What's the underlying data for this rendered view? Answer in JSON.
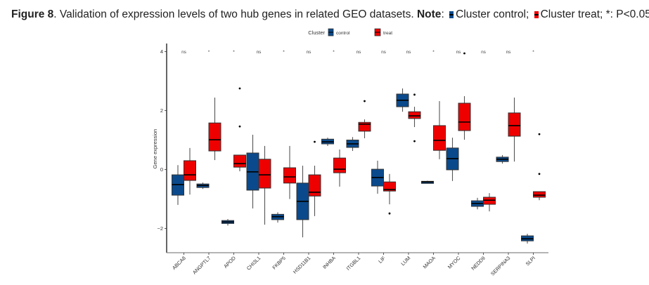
{
  "caption": {
    "figure_label": "Figure 8",
    "text": ". Validation of expression levels of two hub genes in related GEO datasets. ",
    "note_label": "Note",
    "note_control": "Cluster control; ",
    "note_treat": "Cluster treat; ",
    "note_sig": "*: P<0.05."
  },
  "colors": {
    "control": "#0a4a8c",
    "treat": "#ee0000",
    "axis": "#000000"
  },
  "chart_data": {
    "type": "boxplot",
    "title": "",
    "xlabel": "",
    "ylabel": "Gene expression",
    "ylim": [
      -2.85,
      4.3
    ],
    "yticks": [
      -2,
      0,
      2,
      4
    ],
    "legend": {
      "title": "Cluster",
      "entries": [
        "control",
        "treat"
      ],
      "position": "top"
    },
    "categories": [
      "ABCA8",
      "ANGPTL7",
      "APOD",
      "CHI3L1",
      "FKBP5",
      "HSD11B1",
      "INHBA",
      "ITGBL1",
      "LIF",
      "LUM",
      "MAOA",
      "MYOC",
      "NEDD9",
      "SERPINA3",
      "SLPI"
    ],
    "significance": [
      "ns",
      "*",
      "*",
      "ns",
      "*",
      "ns",
      "*",
      "ns",
      "ns",
      "ns",
      "*",
      "ns",
      "ns",
      "ns",
      "*"
    ],
    "series": [
      {
        "name": "control",
        "boxes": [
          {
            "min": -1.2,
            "q1": -0.87,
            "median": -0.51,
            "q3": -0.18,
            "max": 0.15,
            "outliers": []
          },
          {
            "min": -0.66,
            "q1": -0.61,
            "median": -0.54,
            "q3": -0.49,
            "max": -0.44,
            "outliers": []
          },
          {
            "min": -1.9,
            "q1": -1.83,
            "median": -1.78,
            "q3": -1.73,
            "max": -1.68,
            "outliers": []
          },
          {
            "min": -1.32,
            "q1": -0.7,
            "median": -0.08,
            "q3": 0.56,
            "max": 1.18,
            "outliers": []
          },
          {
            "min": -1.8,
            "q1": -1.7,
            "median": -1.6,
            "q3": -1.52,
            "max": -1.45,
            "outliers": []
          },
          {
            "min": -2.3,
            "q1": -1.7,
            "median": -1.08,
            "q3": -0.46,
            "max": 0.13,
            "outliers": []
          },
          {
            "min": 0.8,
            "q1": 0.87,
            "median": 0.94,
            "q3": 1.03,
            "max": 1.08,
            "outliers": []
          },
          {
            "min": 0.63,
            "q1": 0.75,
            "median": 0.87,
            "q3": 1.0,
            "max": 1.1,
            "outliers": []
          },
          {
            "min": -0.82,
            "q1": -0.56,
            "median": -0.27,
            "q3": 0.01,
            "max": 0.3,
            "outliers": []
          },
          {
            "min": 1.96,
            "q1": 2.13,
            "median": 2.35,
            "q3": 2.56,
            "max": 2.75,
            "outliers": []
          },
          {
            "min": -0.47,
            "q1": -0.44,
            "median": -0.42,
            "q3": -0.4,
            "max": -0.38,
            "outliers": []
          },
          {
            "min": -0.39,
            "q1": -0.01,
            "median": 0.37,
            "q3": 0.73,
            "max": 1.08,
            "outliers": []
          },
          {
            "min": -1.35,
            "q1": -1.25,
            "median": -1.15,
            "q3": -1.06,
            "max": -0.96,
            "outliers": []
          },
          {
            "min": 0.2,
            "q1": 0.27,
            "median": 0.35,
            "q3": 0.42,
            "max": 0.49,
            "outliers": []
          },
          {
            "min": -2.51,
            "q1": -2.42,
            "median": -2.35,
            "q3": -2.25,
            "max": -2.18,
            "outliers": []
          }
        ]
      },
      {
        "name": "treat",
        "boxes": [
          {
            "min": -0.85,
            "q1": -0.37,
            "median": -0.18,
            "q3": 0.3,
            "max": 0.73,
            "outliers": []
          },
          {
            "min": 0.32,
            "q1": 0.63,
            "median": 1.01,
            "q3": 1.58,
            "max": 2.44,
            "outliers": []
          },
          {
            "min": -0.06,
            "q1": 0.08,
            "median": 0.2,
            "q3": 0.49,
            "max": 0.5,
            "outliers": [
              2.75,
              1.46
            ]
          },
          {
            "min": -1.87,
            "q1": -0.63,
            "median": -0.18,
            "q3": 0.35,
            "max": 0.8,
            "outliers": []
          },
          {
            "min": -1.0,
            "q1": -0.46,
            "median": -0.25,
            "q3": 0.06,
            "max": 0.8,
            "outliers": []
          },
          {
            "min": -1.58,
            "q1": -0.9,
            "median": -0.77,
            "q3": -0.18,
            "max": 0.13,
            "outliers": [
              0.94
            ]
          },
          {
            "min": -0.58,
            "q1": -0.11,
            "median": 0.01,
            "q3": 0.39,
            "max": 0.68,
            "outliers": []
          },
          {
            "min": 1.06,
            "q1": 1.3,
            "median": 1.54,
            "q3": 1.6,
            "max": 1.7,
            "outliers": [
              2.32
            ]
          },
          {
            "min": -1.18,
            "q1": -0.73,
            "median": -0.68,
            "q3": -0.42,
            "max": -0.15,
            "outliers": [
              -1.49
            ]
          },
          {
            "min": 1.44,
            "q1": 1.73,
            "median": 1.82,
            "q3": 1.96,
            "max": 2.13,
            "outliers": [
              2.54,
              0.96
            ]
          },
          {
            "min": 0.35,
            "q1": 0.65,
            "median": 0.99,
            "q3": 1.49,
            "max": 2.32,
            "outliers": []
          },
          {
            "min": 1.01,
            "q1": 1.32,
            "median": 1.61,
            "q3": 2.25,
            "max": 2.49,
            "outliers": [
              3.94
            ]
          },
          {
            "min": -1.42,
            "q1": -1.18,
            "median": -1.04,
            "q3": -0.94,
            "max": -0.8,
            "outliers": []
          },
          {
            "min": 0.27,
            "q1": 1.13,
            "median": 1.49,
            "q3": 1.92,
            "max": 2.44,
            "outliers": []
          },
          {
            "min": -1.04,
            "q1": -0.94,
            "median": -0.87,
            "q3": -0.75,
            "max": -0.75,
            "outliers": [
              1.2,
              -0.15
            ]
          }
        ]
      }
    ]
  }
}
